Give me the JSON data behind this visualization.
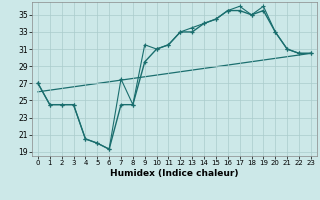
{
  "xlabel": "Humidex (Indice chaleur)",
  "bg_color": "#cce8e8",
  "grid_color": "#aacccc",
  "line_color": "#1a6e6e",
  "xlim": [
    -0.5,
    23.5
  ],
  "ylim": [
    18.5,
    36.5
  ],
  "xticks": [
    0,
    1,
    2,
    3,
    4,
    5,
    6,
    7,
    8,
    9,
    10,
    11,
    12,
    13,
    14,
    15,
    16,
    17,
    18,
    19,
    20,
    21,
    22,
    23
  ],
  "yticks": [
    19,
    21,
    23,
    25,
    27,
    29,
    31,
    33,
    35
  ],
  "line1_x": [
    0,
    1,
    2,
    3,
    4,
    5,
    6,
    7,
    8,
    9,
    10,
    11,
    12,
    13,
    14,
    15,
    16,
    17,
    18,
    19,
    20,
    21,
    22,
    23
  ],
  "line1_y": [
    27,
    24.5,
    24.5,
    24.5,
    20.5,
    20,
    19.3,
    24.5,
    24.5,
    29.5,
    31,
    31.5,
    33,
    33,
    34,
    34.5,
    35.5,
    35.5,
    35,
    35.5,
    33,
    31,
    30.5,
    30.5
  ],
  "line2_x": [
    0,
    1,
    2,
    3,
    4,
    5,
    6,
    7,
    8,
    9,
    10,
    11,
    12,
    13,
    14,
    15,
    16,
    17,
    18,
    19,
    20,
    21,
    22,
    23
  ],
  "line2_y": [
    27,
    24.5,
    24.5,
    24.5,
    20.5,
    20,
    19.3,
    27.5,
    24.5,
    31.5,
    31,
    31.5,
    33,
    33.5,
    34,
    34.5,
    35.5,
    36,
    35,
    36,
    33,
    31,
    30.5,
    30.5
  ],
  "line3_x": [
    0,
    23
  ],
  "line3_y": [
    26,
    30.5
  ]
}
